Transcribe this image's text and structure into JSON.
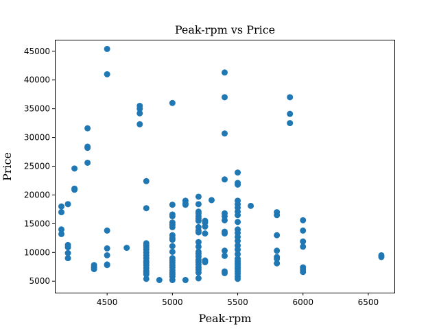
{
  "chart_data": {
    "type": "scatter",
    "title": "Peak-rpm vs Price",
    "xlabel": "Peak-rpm",
    "ylabel": "Price",
    "xlim": [
      4100,
      6700
    ],
    "ylim": [
      3000,
      47000
    ],
    "xticks": [
      4500,
      5000,
      5500,
      6000,
      6500
    ],
    "yticks": [
      5000,
      10000,
      15000,
      20000,
      25000,
      30000,
      35000,
      40000,
      45000
    ],
    "grid": false,
    "color": "#1f77b4",
    "points": [
      [
        4150,
        18000
      ],
      [
        4150,
        17000
      ],
      [
        4150,
        14000
      ],
      [
        4150,
        13200
      ],
      [
        4200,
        18400
      ],
      [
        4200,
        11300
      ],
      [
        4200,
        10900
      ],
      [
        4200,
        9900
      ],
      [
        4200,
        9000
      ],
      [
        4250,
        24600
      ],
      [
        4250,
        21100
      ],
      [
        4250,
        20900
      ],
      [
        4350,
        31600
      ],
      [
        4350,
        28400
      ],
      [
        4350,
        28200
      ],
      [
        4350,
        25600
      ],
      [
        4400,
        7800
      ],
      [
        4400,
        7400
      ],
      [
        4400,
        7100
      ],
      [
        4500,
        45400
      ],
      [
        4500,
        41000
      ],
      [
        4500,
        13800
      ],
      [
        4500,
        10700
      ],
      [
        4500,
        9500
      ],
      [
        4500,
        7900
      ],
      [
        4500,
        7800
      ],
      [
        4650,
        10800
      ],
      [
        4750,
        35500
      ],
      [
        4750,
        35000
      ],
      [
        4750,
        34200
      ],
      [
        4750,
        32300
      ],
      [
        4800,
        22400
      ],
      [
        4800,
        17700
      ],
      [
        4800,
        11600
      ],
      [
        4800,
        11200
      ],
      [
        4800,
        10900
      ],
      [
        4800,
        10500
      ],
      [
        4800,
        10000
      ],
      [
        4800,
        9500
      ],
      [
        4800,
        9000
      ],
      [
        4800,
        8500
      ],
      [
        4800,
        8200
      ],
      [
        4800,
        7800
      ],
      [
        4800,
        7300
      ],
      [
        4800,
        6800
      ],
      [
        4800,
        6500
      ],
      [
        4800,
        6200
      ],
      [
        4800,
        5400
      ],
      [
        4900,
        5200
      ],
      [
        5000,
        36000
      ],
      [
        5000,
        18300
      ],
      [
        5000,
        16600
      ],
      [
        5000,
        16300
      ],
      [
        5000,
        15200
      ],
      [
        5000,
        14800
      ],
      [
        5000,
        14400
      ],
      [
        5000,
        13000
      ],
      [
        5000,
        12500
      ],
      [
        5000,
        12200
      ],
      [
        5000,
        11100
      ],
      [
        5000,
        10100
      ],
      [
        5000,
        9000
      ],
      [
        5000,
        8600
      ],
      [
        5000,
        8200
      ],
      [
        5000,
        7800
      ],
      [
        5000,
        7400
      ],
      [
        5000,
        6900
      ],
      [
        5000,
        6500
      ],
      [
        5000,
        6200
      ],
      [
        5000,
        5800
      ],
      [
        5000,
        5200
      ],
      [
        5100,
        19000
      ],
      [
        5100,
        18500
      ],
      [
        5100,
        18300
      ],
      [
        5100,
        5200
      ],
      [
        5200,
        19700
      ],
      [
        5200,
        18400
      ],
      [
        5200,
        17100
      ],
      [
        5200,
        16800
      ],
      [
        5200,
        16300
      ],
      [
        5200,
        15900
      ],
      [
        5200,
        15500
      ],
      [
        5200,
        14400
      ],
      [
        5200,
        13800
      ],
      [
        5200,
        13500
      ],
      [
        5200,
        11800
      ],
      [
        5200,
        11000
      ],
      [
        5200,
        10100
      ],
      [
        5200,
        9800
      ],
      [
        5200,
        9300
      ],
      [
        5200,
        8700
      ],
      [
        5200,
        8300
      ],
      [
        5200,
        7900
      ],
      [
        5200,
        7400
      ],
      [
        5200,
        7000
      ],
      [
        5200,
        6500
      ],
      [
        5200,
        5500
      ],
      [
        5250,
        15500
      ],
      [
        5250,
        15200
      ],
      [
        5250,
        14500
      ],
      [
        5250,
        13300
      ],
      [
        5250,
        8600
      ],
      [
        5250,
        8300
      ],
      [
        5300,
        19100
      ],
      [
        5400,
        41300
      ],
      [
        5400,
        37000
      ],
      [
        5400,
        30700
      ],
      [
        5400,
        22700
      ],
      [
        5400,
        16800
      ],
      [
        5400,
        16300
      ],
      [
        5400,
        15600
      ],
      [
        5400,
        13600
      ],
      [
        5400,
        13300
      ],
      [
        5400,
        10300
      ],
      [
        5400,
        9400
      ],
      [
        5400,
        6700
      ],
      [
        5400,
        6400
      ],
      [
        5500,
        23900
      ],
      [
        5500,
        22100
      ],
      [
        5500,
        21800
      ],
      [
        5500,
        19000
      ],
      [
        5500,
        18400
      ],
      [
        5500,
        17800
      ],
      [
        5500,
        17100
      ],
      [
        5500,
        16500
      ],
      [
        5500,
        15300
      ],
      [
        5500,
        14000
      ],
      [
        5500,
        13400
      ],
      [
        5500,
        12700
      ],
      [
        5500,
        12000
      ],
      [
        5500,
        11200
      ],
      [
        5500,
        10500
      ],
      [
        5500,
        9700
      ],
      [
        5500,
        8900
      ],
      [
        5500,
        8500
      ],
      [
        5500,
        8100
      ],
      [
        5500,
        7800
      ],
      [
        5500,
        7400
      ],
      [
        5500,
        7100
      ],
      [
        5500,
        6700
      ],
      [
        5500,
        6300
      ],
      [
        5500,
        5800
      ],
      [
        5500,
        5400
      ],
      [
        5600,
        18100
      ],
      [
        5800,
        17000
      ],
      [
        5800,
        16500
      ],
      [
        5800,
        13000
      ],
      [
        5800,
        10300
      ],
      [
        5800,
        9200
      ],
      [
        5800,
        8900
      ],
      [
        5800,
        8100
      ],
      [
        5900,
        37000
      ],
      [
        5900,
        34100
      ],
      [
        5900,
        32500
      ],
      [
        6000,
        15600
      ],
      [
        6000,
        13800
      ],
      [
        6000,
        11900
      ],
      [
        6000,
        11000
      ],
      [
        6000,
        7400
      ],
      [
        6000,
        7000
      ],
      [
        6000,
        6600
      ],
      [
        6600,
        9500
      ],
      [
        6600,
        9200
      ]
    ]
  }
}
